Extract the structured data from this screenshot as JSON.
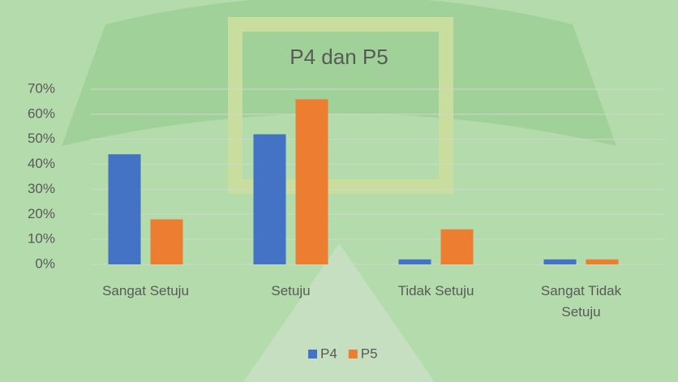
{
  "chart_data": {
    "type": "bar",
    "title": "P4 dan P5",
    "categories": [
      "Sangat Setuju",
      "Setuju",
      "Tidak Setuju",
      "Sangat Tidak Setuju"
    ],
    "series": [
      {
        "name": "P4",
        "color": "#4472c4",
        "values": [
          44,
          52,
          2,
          2
        ]
      },
      {
        "name": "P5",
        "color": "#ed7d31",
        "values": [
          18,
          66,
          14,
          2
        ]
      }
    ],
    "ylim": [
      0,
      70
    ],
    "yticks": [
      {
        "value": 0,
        "label": "0%"
      },
      {
        "value": 10,
        "label": "10%"
      },
      {
        "value": 20,
        "label": "20%"
      },
      {
        "value": 30,
        "label": "30%"
      },
      {
        "value": 40,
        "label": "40%"
      },
      {
        "value": 50,
        "label": "50%"
      },
      {
        "value": 60,
        "label": "60%"
      },
      {
        "value": 70,
        "label": "70%"
      }
    ],
    "grid": true,
    "legend": "bottom"
  }
}
